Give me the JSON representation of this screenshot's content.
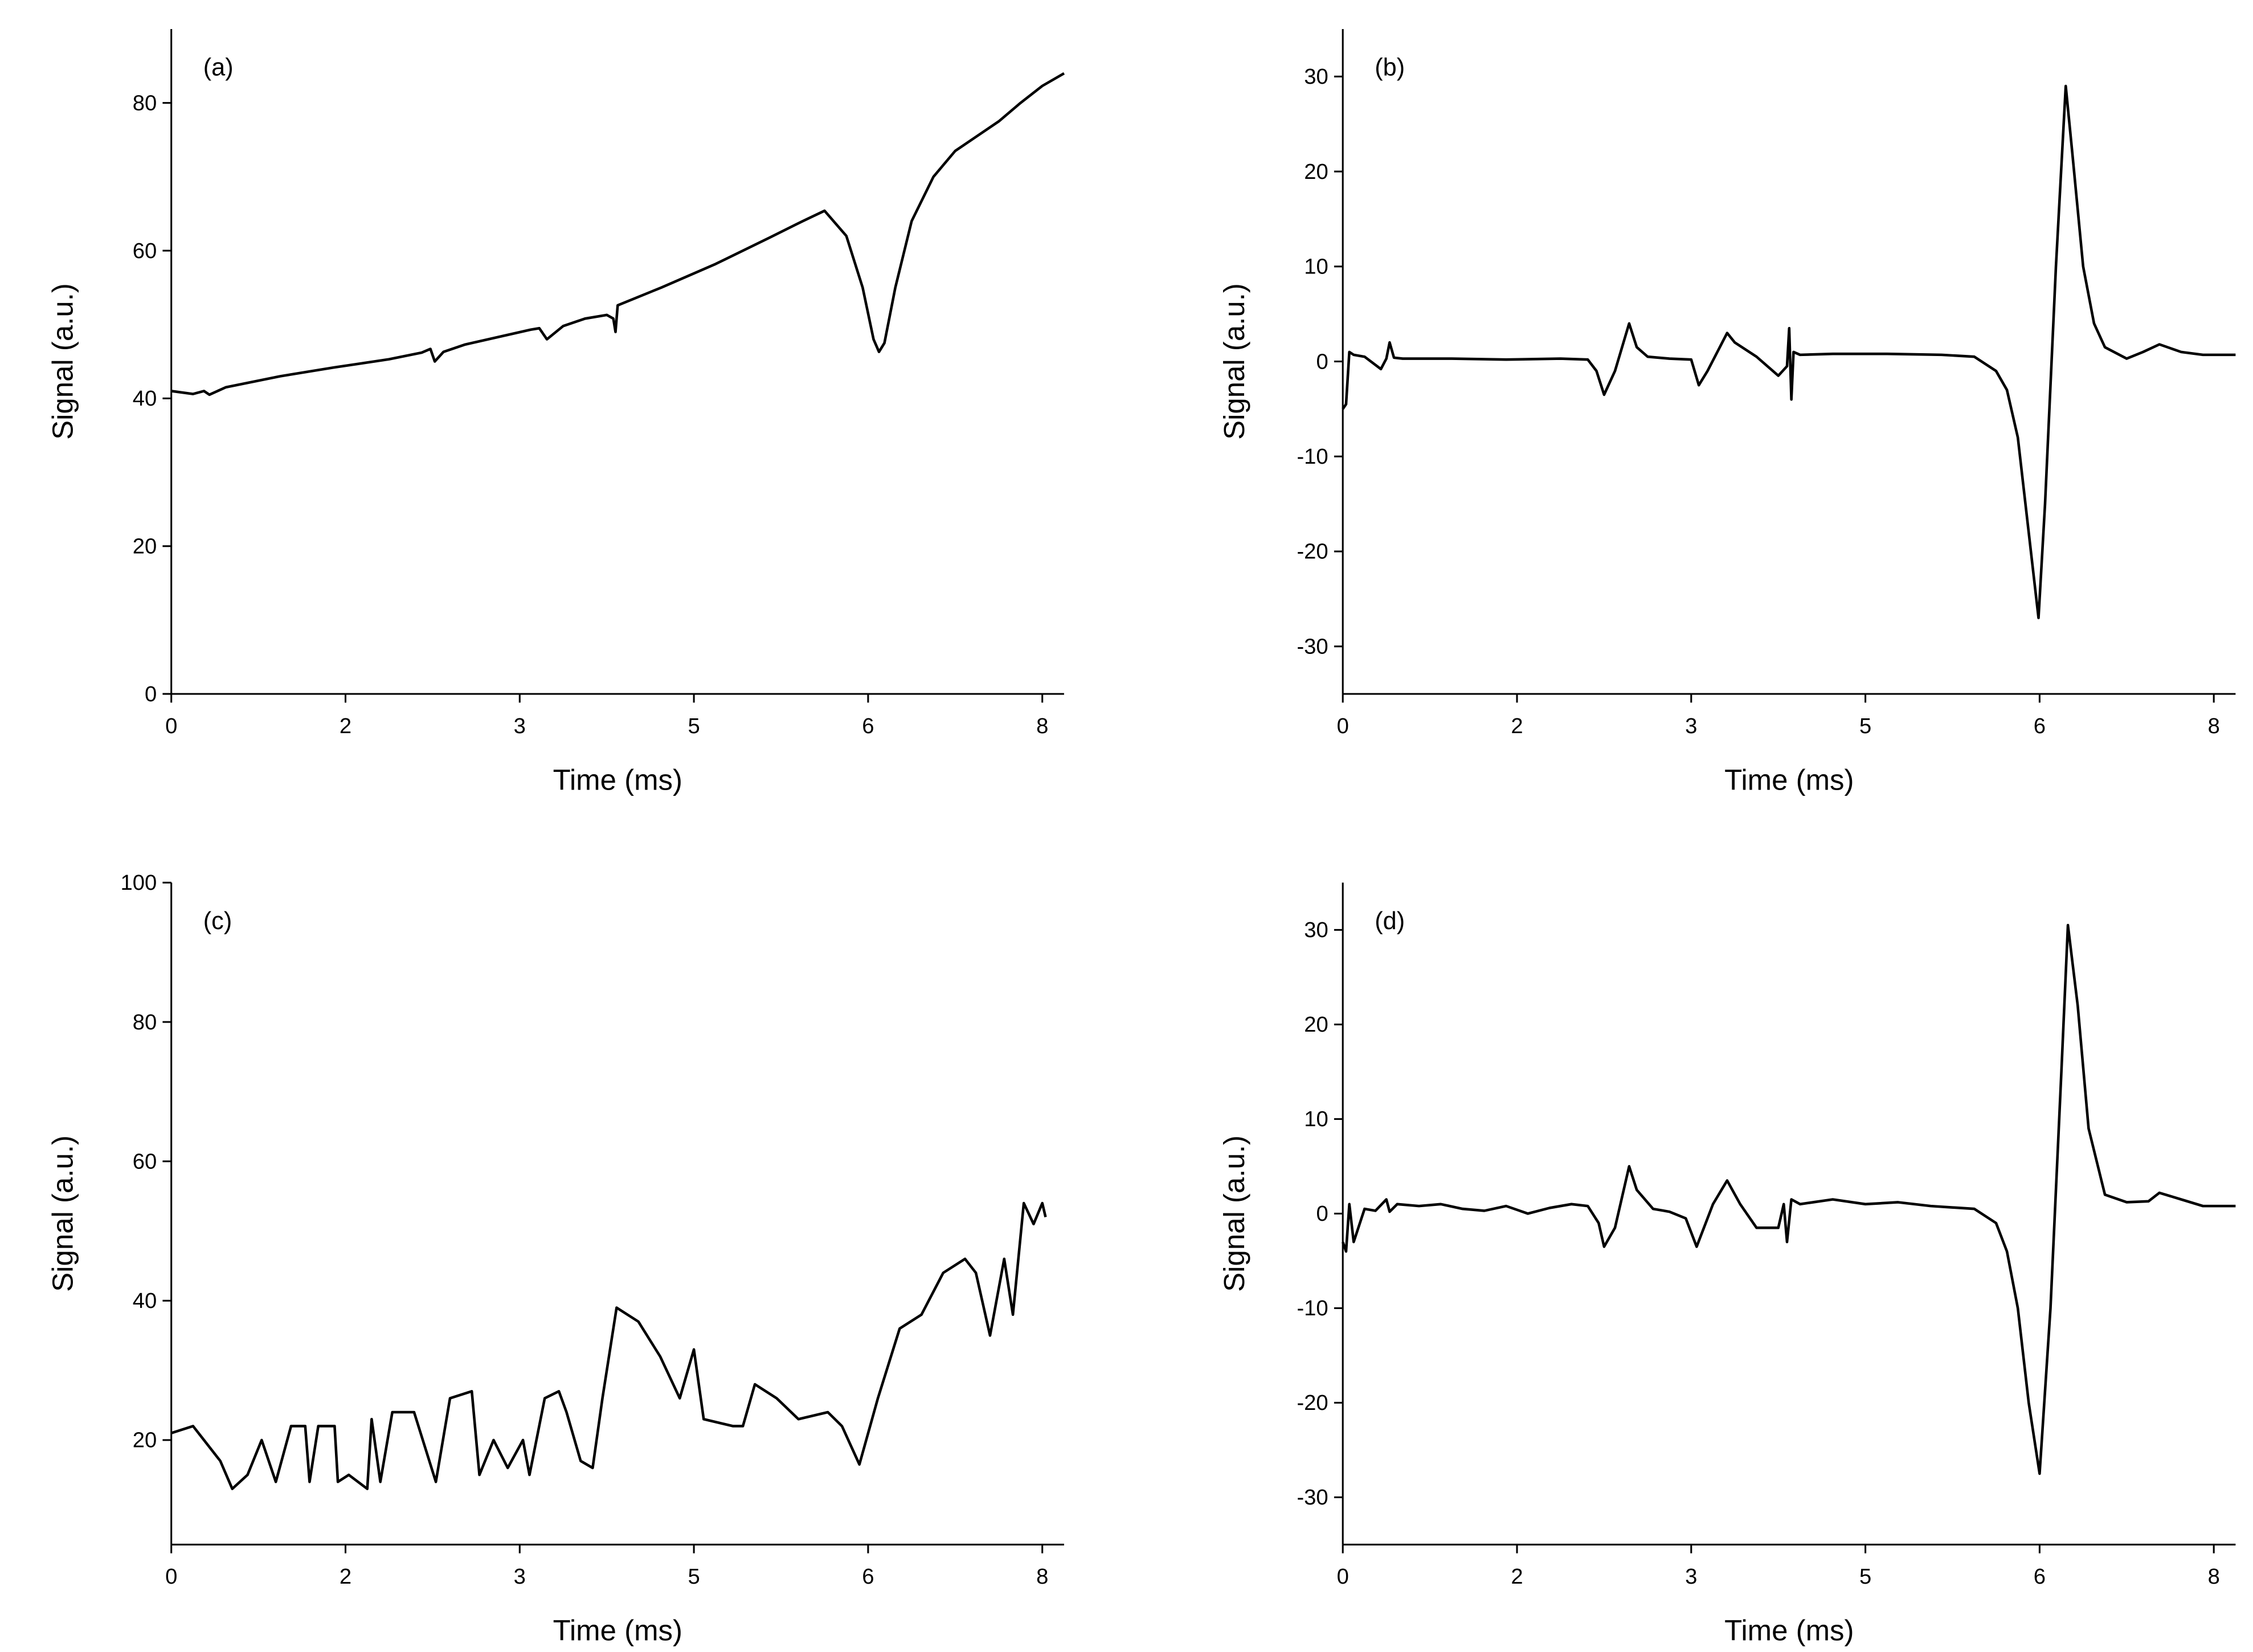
{
  "chart_data": [
    {
      "type": "line",
      "annotation": "(a)",
      "xlabel": "Time (ms)",
      "ylabel": "Signal (a.u.)",
      "xlim": [
        0,
        8.2
      ],
      "xticks": [
        0,
        {
          "value": 1.6,
          "label": "2"
        },
        {
          "value": 3.2,
          "label": "3"
        },
        {
          "value": 4.8,
          "label": "5"
        },
        {
          "value": 6.4,
          "label": "6"
        },
        8
      ],
      "ylim": [
        0,
        90
      ],
      "yticks": [
        0,
        20,
        40,
        60,
        80
      ],
      "x": [
        0,
        0.2,
        0.3,
        0.35,
        0.5,
        1,
        1.5,
        2,
        2.3,
        2.38,
        2.42,
        2.5,
        2.7,
        3,
        3.3,
        3.38,
        3.45,
        3.6,
        3.8,
        4.0,
        4.06,
        4.08,
        4.1,
        4.5,
        5,
        5.5,
        5.8,
        6.0,
        6.2,
        6.35,
        6.45,
        6.5,
        6.55,
        6.65,
        6.8,
        7.0,
        7.2,
        7.4,
        7.6,
        7.8,
        8.0,
        8.2
      ],
      "series": [
        {
          "color": "#000000",
          "values": [
            41,
            40.6,
            41,
            40.5,
            41.5,
            43,
            44.2,
            45.3,
            46.2,
            46.7,
            45,
            46.3,
            47.3,
            48.3,
            49.3,
            49.5,
            48,
            49.8,
            50.8,
            51.3,
            50.8,
            49,
            52.6,
            55,
            58.2,
            61.8,
            64,
            65.4,
            62,
            55,
            48,
            46.3,
            47.5,
            55,
            64,
            70,
            73.5,
            75.5,
            77.5,
            80,
            82.3,
            84
          ]
        }
      ]
    },
    {
      "type": "line",
      "annotation": "(b)",
      "xlabel": "Time (ms)",
      "ylabel": "Signal (a.u.)",
      "xlim": [
        0,
        8.2
      ],
      "xticks": [
        0,
        {
          "value": 1.6,
          "label": "2"
        },
        {
          "value": 3.2,
          "label": "3"
        },
        {
          "value": 4.8,
          "label": "5"
        },
        {
          "value": 6.4,
          "label": "6"
        },
        8
      ],
      "ylim": [
        -35,
        35
      ],
      "yticks": [
        -30,
        -20,
        -10,
        0,
        10,
        20,
        30
      ],
      "x": [
        0,
        0.03,
        0.06,
        0.1,
        0.2,
        0.35,
        0.4,
        0.43,
        0.47,
        0.55,
        1,
        1.5,
        2,
        2.25,
        2.33,
        2.4,
        2.5,
        2.63,
        2.7,
        2.8,
        3,
        3.2,
        3.27,
        3.35,
        3.53,
        3.6,
        3.8,
        4.0,
        4.08,
        4.1,
        4.12,
        4.14,
        4.2,
        4.5,
        5,
        5.5,
        5.8,
        6.0,
        6.1,
        6.2,
        6.3,
        6.39,
        6.45,
        6.55,
        6.64,
        6.7,
        6.8,
        6.9,
        7.0,
        7.2,
        7.35,
        7.5,
        7.7,
        7.9,
        8.2
      ],
      "series": [
        {
          "color": "#000000",
          "values": [
            -5,
            -4.5,
            1,
            0.7,
            0.5,
            -0.8,
            0.3,
            2,
            0.4,
            0.3,
            0.3,
            0.2,
            0.3,
            0.2,
            -1,
            -3.5,
            -1,
            4,
            1.5,
            0.5,
            0.3,
            0.2,
            -2.5,
            -1,
            3,
            2,
            0.5,
            -1.5,
            -0.5,
            3.5,
            -4,
            1,
            0.7,
            0.8,
            0.8,
            0.7,
            0.5,
            -1,
            -3,
            -8,
            -18,
            -27,
            -15,
            10,
            29,
            22,
            10,
            4,
            1.5,
            0.3,
            1,
            1.8,
            1,
            0.7,
            0.7
          ]
        }
      ]
    },
    {
      "type": "line",
      "annotation": "(c)",
      "xlabel": "Time (ms)",
      "ylabel": "Signal (a.u.)",
      "xlim": [
        0,
        8.2
      ],
      "xticks": [
        0,
        {
          "value": 1.6,
          "label": "2"
        },
        {
          "value": 3.2,
          "label": "3"
        },
        {
          "value": 4.8,
          "label": "5"
        },
        {
          "value": 6.4,
          "label": "6"
        },
        8
      ],
      "ylim": [
        5,
        100
      ],
      "yticks": [
        20,
        40,
        60,
        80,
        100
      ],
      "x": [
        0,
        0.2,
        0.3,
        0.45,
        0.56,
        0.7,
        0.83,
        0.96,
        1.1,
        1.23,
        1.27,
        1.35,
        1.5,
        1.53,
        1.63,
        1.8,
        1.84,
        1.92,
        2.03,
        2.23,
        2.43,
        2.56,
        2.76,
        2.83,
        2.96,
        3.09,
        3.23,
        3.29,
        3.43,
        3.56,
        3.63,
        3.76,
        3.87,
        3.96,
        4.09,
        4.29,
        4.49,
        4.67,
        4.8,
        4.89,
        5.16,
        5.25,
        5.36,
        5.56,
        5.76,
        6.03,
        6.16,
        6.32,
        6.49,
        6.69,
        6.89,
        7.09,
        7.29,
        7.39,
        7.52,
        7.65,
        7.73,
        7.83,
        7.92,
        8.0,
        8.03
      ],
      "series": [
        {
          "color": "#000000",
          "values": [
            21,
            22,
            20,
            17,
            13,
            15,
            20,
            14,
            22,
            22,
            14,
            22,
            22,
            14,
            15,
            13,
            23,
            14,
            24,
            24,
            14,
            26,
            27,
            15,
            20,
            16,
            20,
            15,
            26,
            27,
            24,
            17,
            16,
            26,
            39,
            37,
            32,
            26,
            33,
            23,
            22,
            22,
            28,
            26,
            23,
            24,
            22,
            16.5,
            26,
            36,
            38,
            44,
            46,
            44,
            35,
            46,
            38,
            54,
            51,
            54,
            52
          ]
        }
      ]
    },
    {
      "type": "line",
      "annotation": "(d)",
      "xlabel": "Time (ms)",
      "ylabel": "Signal (a.u.)",
      "xlim": [
        0,
        8.2
      ],
      "xticks": [
        0,
        {
          "value": 1.6,
          "label": "2"
        },
        {
          "value": 3.2,
          "label": "3"
        },
        {
          "value": 4.8,
          "label": "5"
        },
        {
          "value": 6.4,
          "label": "6"
        },
        8
      ],
      "ylim": [
        -35,
        35
      ],
      "yticks": [
        -30,
        -20,
        -10,
        0,
        10,
        20,
        30
      ],
      "x": [
        0,
        0.03,
        0.06,
        0.1,
        0.2,
        0.3,
        0.4,
        0.43,
        0.5,
        0.7,
        0.9,
        1.1,
        1.3,
        1.5,
        1.7,
        1.9,
        2.1,
        2.25,
        2.35,
        2.4,
        2.5,
        2.63,
        2.7,
        2.85,
        3.0,
        3.15,
        3.25,
        3.3,
        3.4,
        3.53,
        3.65,
        3.8,
        4.0,
        4.05,
        4.08,
        4.12,
        4.2,
        4.5,
        4.8,
        5.1,
        5.4,
        5.8,
        6.0,
        6.1,
        6.2,
        6.3,
        6.4,
        6.5,
        6.6,
        6.66,
        6.75,
        6.85,
        7.0,
        7.2,
        7.4,
        7.5,
        7.7,
        7.9,
        8.2
      ],
      "series": [
        {
          "color": "#000000",
          "values": [
            -3,
            -4,
            1,
            -3,
            0.5,
            0.3,
            1.5,
            0.2,
            1,
            0.8,
            1,
            0.5,
            0.3,
            0.8,
            0,
            0.6,
            1,
            0.8,
            -1,
            -3.5,
            -1.5,
            5,
            2.5,
            0.5,
            0.2,
            -0.5,
            -3.5,
            -2,
            1,
            3.5,
            1,
            -1.5,
            -1.5,
            1,
            -3,
            1.5,
            1,
            1.5,
            1,
            1.2,
            0.8,
            0.5,
            -1,
            -4,
            -10,
            -20,
            -27.5,
            -10,
            15,
            30.5,
            22,
            9,
            2,
            1.2,
            1.3,
            2.2,
            1.5,
            0.8,
            0.8
          ]
        }
      ]
    }
  ]
}
